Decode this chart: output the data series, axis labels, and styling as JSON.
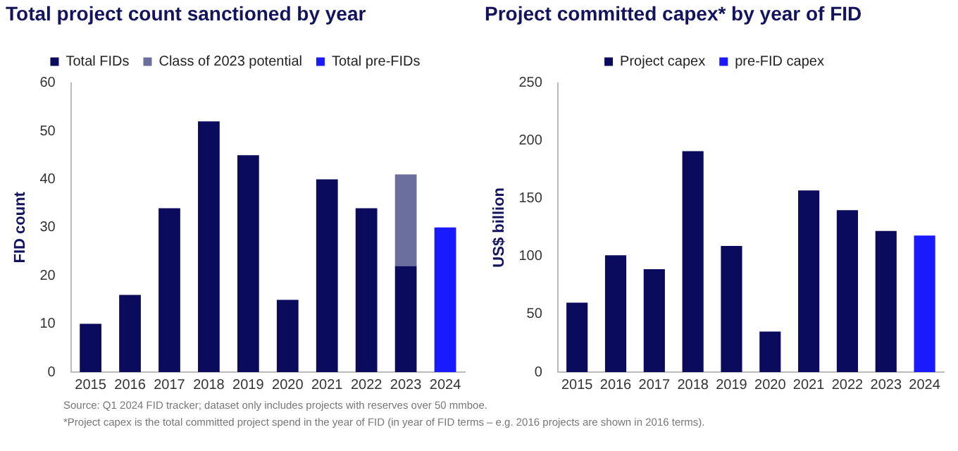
{
  "chart_data": [
    {
      "type": "bar",
      "title": "Total project count sanctioned by year",
      "ylabel": "FID count",
      "categories": [
        "2015",
        "2016",
        "2017",
        "2018",
        "2019",
        "2020",
        "2021",
        "2022",
        "2023",
        "2024"
      ],
      "stacked": true,
      "ylim": [
        0,
        60
      ],
      "yticks": [
        0,
        10,
        20,
        30,
        40,
        50,
        60
      ],
      "grid": false,
      "legend": "top",
      "annotations": [
        "Source: Q1 2024 FID tracker; dataset only includes projects with reserves over 50 mmboe."
      ],
      "series": [
        {
          "name": "Total FIDs",
          "color": "#0b0b5e",
          "values": [
            10,
            16,
            34,
            52,
            45,
            15,
            40,
            34,
            22,
            null
          ]
        },
        {
          "name": "Class of 2023 potential",
          "color": "#6b6f9e",
          "values": [
            null,
            null,
            null,
            null,
            null,
            null,
            null,
            null,
            19,
            null
          ]
        },
        {
          "name": "Total pre-FIDs",
          "color": "#1a1aff",
          "values": [
            null,
            null,
            null,
            null,
            null,
            null,
            null,
            null,
            null,
            30
          ]
        }
      ]
    },
    {
      "type": "bar",
      "title": "Project committed capex* by year of FID",
      "ylabel": "US$ billion",
      "categories": [
        "2015",
        "2016",
        "2017",
        "2018",
        "2019",
        "2020",
        "2021",
        "2022",
        "2023",
        "2024"
      ],
      "stacked": true,
      "ylim": [
        0,
        250
      ],
      "yticks": [
        0,
        50,
        100,
        150,
        200,
        250
      ],
      "grid": false,
      "legend": "top",
      "annotations": [
        "*Project capex is the total committed project spend in the year of FID (in year of FID terms – e.g. 2016 projects are shown in 2016 terms)."
      ],
      "series": [
        {
          "name": "Project capex",
          "color": "#0b0b5e",
          "values": [
            60,
            101,
            89,
            191,
            109,
            35,
            157,
            140,
            122,
            null
          ]
        },
        {
          "name": "pre-FID capex",
          "color": "#1a1aff",
          "values": [
            null,
            null,
            null,
            null,
            null,
            null,
            null,
            null,
            null,
            118
          ]
        }
      ]
    }
  ]
}
